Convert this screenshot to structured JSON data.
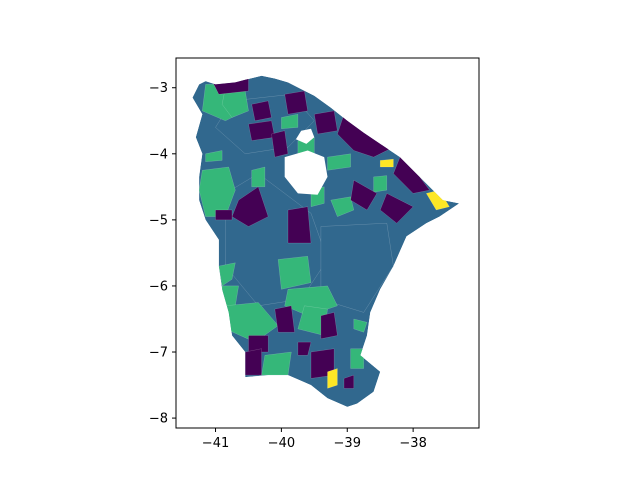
{
  "chart_data": {
    "type": "map",
    "title": "",
    "xlabel": "",
    "ylabel": "",
    "xlim": [
      -41.6,
      -37.0
    ],
    "ylim": [
      -8.15,
      -2.55
    ],
    "x_ticks": [
      -41,
      -40,
      -39,
      -38
    ],
    "y_ticks": [
      -3,
      -4,
      -5,
      -6,
      -7,
      -8
    ],
    "x_tick_labels": [
      "−41",
      "−40",
      "−39",
      "−38"
    ],
    "y_tick_labels": [
      "−3",
      "−4",
      "−5",
      "−6",
      "−7",
      "−8"
    ],
    "colormap": "viridis",
    "category_colors": [
      "#440154",
      "#31688e",
      "#35b779",
      "#fde725"
    ],
    "state_outline": [
      [
        -41.15,
        -2.9
      ],
      [
        -41.0,
        -2.95
      ],
      [
        -40.7,
        -2.92
      ],
      [
        -40.55,
        -2.88
      ],
      [
        -40.3,
        -2.82
      ],
      [
        -40.1,
        -2.86
      ],
      [
        -39.9,
        -2.92
      ],
      [
        -39.7,
        -3.02
      ],
      [
        -39.5,
        -3.12
      ],
      [
        -39.25,
        -3.3
      ],
      [
        -39.0,
        -3.5
      ],
      [
        -38.75,
        -3.68
      ],
      [
        -38.5,
        -3.85
      ],
      [
        -38.2,
        -4.05
      ],
      [
        -37.95,
        -4.3
      ],
      [
        -37.7,
        -4.55
      ],
      [
        -37.55,
        -4.7
      ],
      [
        -37.3,
        -4.75
      ],
      [
        -37.6,
        -4.95
      ],
      [
        -37.8,
        -5.05
      ],
      [
        -38.1,
        -5.25
      ],
      [
        -38.3,
        -5.7
      ],
      [
        -38.5,
        -6.05
      ],
      [
        -38.65,
        -6.4
      ],
      [
        -38.7,
        -6.75
      ],
      [
        -38.8,
        -7.05
      ],
      [
        -38.5,
        -7.3
      ],
      [
        -38.6,
        -7.6
      ],
      [
        -38.85,
        -7.78
      ],
      [
        -39.0,
        -7.83
      ],
      [
        -39.3,
        -7.7
      ],
      [
        -39.55,
        -7.5
      ],
      [
        -39.9,
        -7.35
      ],
      [
        -40.2,
        -7.35
      ],
      [
        -40.55,
        -7.38
      ],
      [
        -40.55,
        -7.0
      ],
      [
        -40.75,
        -6.75
      ],
      [
        -40.8,
        -6.4
      ],
      [
        -40.9,
        -6.05
      ],
      [
        -40.95,
        -5.7
      ],
      [
        -40.95,
        -5.3
      ],
      [
        -41.15,
        -5.0
      ],
      [
        -41.25,
        -4.7
      ],
      [
        -41.25,
        -4.35
      ],
      [
        -41.2,
        -4.0
      ],
      [
        -41.3,
        -3.75
      ],
      [
        -41.2,
        -3.4
      ],
      [
        -41.35,
        -3.15
      ],
      [
        -41.25,
        -2.95
      ]
    ],
    "holes": [
      [
        [
          -39.7,
          -3.65
        ],
        [
          -39.55,
          -3.62
        ],
        [
          -39.5,
          -3.75
        ],
        [
          -39.62,
          -3.85
        ],
        [
          -39.78,
          -3.78
        ]
      ],
      [
        [
          -39.95,
          -4.05
        ],
        [
          -39.6,
          -3.95
        ],
        [
          -39.35,
          -4.05
        ],
        [
          -39.3,
          -4.35
        ],
        [
          -39.45,
          -4.62
        ],
        [
          -39.75,
          -4.6
        ],
        [
          -39.95,
          -4.35
        ]
      ]
    ],
    "regions": [
      {
        "category": 1,
        "points": [
          [
            -40.85,
            -4.6
          ],
          [
            -40.35,
            -4.3
          ],
          [
            -39.95,
            -4.6
          ],
          [
            -39.55,
            -4.9
          ],
          [
            -39.3,
            -5.6
          ],
          [
            -39.7,
            -6.2
          ],
          [
            -40.35,
            -6.3
          ],
          [
            -40.85,
            -5.7
          ]
        ]
      },
      {
        "category": 1,
        "points": [
          [
            -39.4,
            -5.1
          ],
          [
            -38.4,
            -5.05
          ],
          [
            -38.3,
            -5.7
          ],
          [
            -38.75,
            -6.4
          ],
          [
            -39.4,
            -6.2
          ]
        ]
      },
      {
        "category": 1,
        "points": [
          [
            -40.75,
            -3.2
          ],
          [
            -39.85,
            -3.1
          ],
          [
            -39.5,
            -3.5
          ],
          [
            -39.9,
            -3.9
          ],
          [
            -40.55,
            -4.0
          ],
          [
            -41.0,
            -3.6
          ]
        ]
      },
      {
        "category": 2,
        "points": [
          [
            -41.15,
            -2.95
          ],
          [
            -40.65,
            -2.95
          ],
          [
            -40.55,
            -3.35
          ],
          [
            -40.85,
            -3.5
          ],
          [
            -41.2,
            -3.35
          ]
        ]
      },
      {
        "category": 2,
        "points": [
          [
            -40.85,
            -3.0
          ],
          [
            -40.55,
            -3.05
          ],
          [
            -40.5,
            -3.35
          ],
          [
            -40.75,
            -3.45
          ],
          [
            -40.9,
            -3.25
          ]
        ]
      },
      {
        "category": 2,
        "points": [
          [
            -41.2,
            -4.25
          ],
          [
            -40.8,
            -4.2
          ],
          [
            -40.7,
            -4.55
          ],
          [
            -40.85,
            -4.95
          ],
          [
            -41.15,
            -4.95
          ],
          [
            -41.25,
            -4.55
          ]
        ]
      },
      {
        "category": 2,
        "points": [
          [
            -41.15,
            -4.0
          ],
          [
            -40.9,
            -3.95
          ],
          [
            -40.9,
            -4.1
          ],
          [
            -41.15,
            -4.12
          ]
        ]
      },
      {
        "category": 2,
        "points": [
          [
            -40.45,
            -4.25
          ],
          [
            -40.25,
            -4.2
          ],
          [
            -40.25,
            -4.5
          ],
          [
            -40.45,
            -4.5
          ]
        ]
      },
      {
        "category": 2,
        "points": [
          [
            -40.95,
            -5.7
          ],
          [
            -40.7,
            -5.65
          ],
          [
            -40.75,
            -5.9
          ],
          [
            -40.9,
            -6.0
          ]
        ]
      },
      {
        "category": 2,
        "points": [
          [
            -40.9,
            -6.0
          ],
          [
            -40.65,
            -6.0
          ],
          [
            -40.7,
            -6.3
          ],
          [
            -40.9,
            -6.3
          ]
        ]
      },
      {
        "category": 2,
        "points": [
          [
            -40.85,
            -6.3
          ],
          [
            -40.35,
            -6.25
          ],
          [
            -40.05,
            -6.6
          ],
          [
            -40.4,
            -6.85
          ],
          [
            -40.85,
            -6.65
          ]
        ]
      },
      {
        "category": 2,
        "points": [
          [
            -40.05,
            -5.6
          ],
          [
            -39.6,
            -5.55
          ],
          [
            -39.55,
            -5.95
          ],
          [
            -40.0,
            -6.05
          ]
        ]
      },
      {
        "category": 2,
        "points": [
          [
            -39.9,
            -6.05
          ],
          [
            -39.3,
            -6.0
          ],
          [
            -39.15,
            -6.3
          ],
          [
            -39.6,
            -6.45
          ],
          [
            -39.95,
            -6.3
          ]
        ]
      },
      {
        "category": 2,
        "points": [
          [
            -39.65,
            -6.3
          ],
          [
            -39.3,
            -6.35
          ],
          [
            -39.35,
            -6.75
          ],
          [
            -39.75,
            -6.65
          ]
        ]
      },
      {
        "category": 2,
        "points": [
          [
            -40.25,
            -7.05
          ],
          [
            -39.85,
            -7.0
          ],
          [
            -39.9,
            -7.35
          ],
          [
            -40.3,
            -7.35
          ]
        ]
      },
      {
        "category": 2,
        "points": [
          [
            -38.95,
            -6.95
          ],
          [
            -38.75,
            -6.95
          ],
          [
            -38.75,
            -7.25
          ],
          [
            -38.95,
            -7.25
          ]
        ]
      },
      {
        "category": 2,
        "points": [
          [
            -38.9,
            -6.5
          ],
          [
            -38.7,
            -6.55
          ],
          [
            -38.75,
            -6.7
          ],
          [
            -38.9,
            -6.65
          ]
        ]
      },
      {
        "category": 2,
        "points": [
          [
            -39.25,
            -4.7
          ],
          [
            -38.95,
            -4.65
          ],
          [
            -38.9,
            -4.85
          ],
          [
            -39.15,
            -4.95
          ]
        ]
      },
      {
        "category": 2,
        "points": [
          [
            -39.55,
            -4.55
          ],
          [
            -39.35,
            -4.5
          ],
          [
            -39.35,
            -4.75
          ],
          [
            -39.55,
            -4.8
          ]
        ]
      },
      {
        "category": 2,
        "points": [
          [
            -39.3,
            -4.05
          ],
          [
            -38.95,
            -4.0
          ],
          [
            -38.95,
            -4.2
          ],
          [
            -39.3,
            -4.25
          ]
        ]
      },
      {
        "category": 2,
        "points": [
          [
            -39.75,
            -3.8
          ],
          [
            -39.5,
            -3.75
          ],
          [
            -39.5,
            -4.1
          ],
          [
            -39.75,
            -4.1
          ]
        ]
      },
      {
        "category": 2,
        "points": [
          [
            -40.0,
            -3.45
          ],
          [
            -39.75,
            -3.4
          ],
          [
            -39.75,
            -3.6
          ],
          [
            -40.0,
            -3.62
          ]
        ]
      },
      {
        "category": 2,
        "points": [
          [
            -38.6,
            -4.35
          ],
          [
            -38.4,
            -4.33
          ],
          [
            -38.4,
            -4.55
          ],
          [
            -38.6,
            -4.58
          ]
        ]
      },
      {
        "category": 0,
        "points": [
          [
            -41.05,
            -2.9
          ],
          [
            -40.5,
            -2.85
          ],
          [
            -40.5,
            -3.05
          ],
          [
            -40.95,
            -3.1
          ]
        ]
      },
      {
        "category": 0,
        "points": [
          [
            -40.45,
            -3.25
          ],
          [
            -40.2,
            -3.2
          ],
          [
            -40.15,
            -3.45
          ],
          [
            -40.4,
            -3.5
          ]
        ]
      },
      {
        "category": 0,
        "points": [
          [
            -40.5,
            -3.55
          ],
          [
            -40.15,
            -3.5
          ],
          [
            -40.1,
            -3.75
          ],
          [
            -40.45,
            -3.8
          ]
        ]
      },
      {
        "category": 0,
        "points": [
          [
            -39.95,
            -3.1
          ],
          [
            -39.65,
            -3.05
          ],
          [
            -39.6,
            -3.35
          ],
          [
            -39.9,
            -3.4
          ]
        ]
      },
      {
        "category": 0,
        "points": [
          [
            -39.5,
            -3.4
          ],
          [
            -39.2,
            -3.35
          ],
          [
            -39.15,
            -3.65
          ],
          [
            -39.45,
            -3.7
          ]
        ]
      },
      {
        "category": 0,
        "points": [
          [
            -39.05,
            -3.4
          ],
          [
            -38.75,
            -3.6
          ],
          [
            -38.3,
            -3.9
          ],
          [
            -38.6,
            -4.05
          ],
          [
            -38.9,
            -3.95
          ],
          [
            -39.15,
            -3.7
          ]
        ]
      },
      {
        "category": 0,
        "points": [
          [
            -38.2,
            -4.05
          ],
          [
            -37.9,
            -4.35
          ],
          [
            -37.75,
            -4.55
          ],
          [
            -38.0,
            -4.6
          ],
          [
            -38.3,
            -4.3
          ]
        ]
      },
      {
        "category": 0,
        "points": [
          [
            -38.9,
            -4.4
          ],
          [
            -38.55,
            -4.6
          ],
          [
            -38.7,
            -4.85
          ],
          [
            -38.95,
            -4.7
          ]
        ]
      },
      {
        "category": 0,
        "points": [
          [
            -38.4,
            -4.6
          ],
          [
            -38.0,
            -4.8
          ],
          [
            -38.25,
            -5.05
          ],
          [
            -38.5,
            -4.85
          ]
        ]
      },
      {
        "category": 0,
        "points": [
          [
            -39.9,
            -4.85
          ],
          [
            -39.6,
            -4.8
          ],
          [
            -39.55,
            -5.35
          ],
          [
            -39.9,
            -5.35
          ]
        ]
      },
      {
        "category": 0,
        "points": [
          [
            -40.65,
            -4.7
          ],
          [
            -40.35,
            -4.5
          ],
          [
            -40.2,
            -4.95
          ],
          [
            -40.5,
            -5.1
          ],
          [
            -40.75,
            -4.95
          ]
        ]
      },
      {
        "category": 0,
        "points": [
          [
            -41.0,
            -4.85
          ],
          [
            -40.75,
            -4.85
          ],
          [
            -40.75,
            -5.0
          ],
          [
            -41.0,
            -5.0
          ]
        ]
      },
      {
        "category": 0,
        "points": [
          [
            -40.15,
            -3.7
          ],
          [
            -39.95,
            -3.65
          ],
          [
            -39.9,
            -4.0
          ],
          [
            -40.1,
            -4.05
          ]
        ]
      },
      {
        "category": 0,
        "points": [
          [
            -40.1,
            -6.35
          ],
          [
            -39.85,
            -6.3
          ],
          [
            -39.8,
            -6.7
          ],
          [
            -40.05,
            -6.7
          ]
        ]
      },
      {
        "category": 0,
        "points": [
          [
            -39.4,
            -6.45
          ],
          [
            -39.2,
            -6.4
          ],
          [
            -39.15,
            -6.75
          ],
          [
            -39.4,
            -6.8
          ]
        ]
      },
      {
        "category": 0,
        "points": [
          [
            -40.5,
            -6.75
          ],
          [
            -40.2,
            -6.75
          ],
          [
            -40.2,
            -7.0
          ],
          [
            -40.5,
            -7.0
          ]
        ]
      },
      {
        "category": 0,
        "points": [
          [
            -40.55,
            -7.0
          ],
          [
            -40.3,
            -6.95
          ],
          [
            -40.3,
            -7.35
          ],
          [
            -40.55,
            -7.35
          ]
        ]
      },
      {
        "category": 0,
        "points": [
          [
            -39.55,
            -7.0
          ],
          [
            -39.2,
            -6.95
          ],
          [
            -39.2,
            -7.35
          ],
          [
            -39.55,
            -7.4
          ]
        ]
      },
      {
        "category": 0,
        "points": [
          [
            -39.05,
            -7.4
          ],
          [
            -38.9,
            -7.35
          ],
          [
            -38.9,
            -7.55
          ],
          [
            -39.05,
            -7.55
          ]
        ]
      },
      {
        "category": 0,
        "points": [
          [
            -39.75,
            -6.85
          ],
          [
            -39.55,
            -6.85
          ],
          [
            -39.6,
            -7.05
          ],
          [
            -39.75,
            -7.05
          ]
        ]
      },
      {
        "category": 3,
        "points": [
          [
            -37.8,
            -4.6
          ],
          [
            -37.6,
            -4.55
          ],
          [
            -37.45,
            -4.8
          ],
          [
            -37.65,
            -4.85
          ]
        ]
      },
      {
        "category": 3,
        "points": [
          [
            -38.5,
            -4.1
          ],
          [
            -38.3,
            -4.08
          ],
          [
            -38.3,
            -4.2
          ],
          [
            -38.5,
            -4.2
          ]
        ]
      },
      {
        "category": 3,
        "points": [
          [
            -39.3,
            -7.3
          ],
          [
            -39.15,
            -7.25
          ],
          [
            -39.15,
            -7.5
          ],
          [
            -39.3,
            -7.55
          ]
        ]
      }
    ]
  }
}
